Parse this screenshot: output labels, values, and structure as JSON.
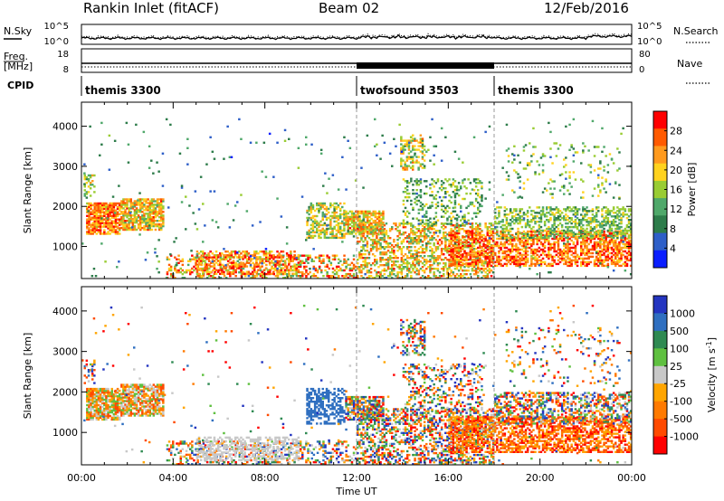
{
  "header": {
    "station": "Rankin Inlet (fitACF)",
    "beam": "Beam 02",
    "date": "12/Feb/2016"
  },
  "strip_plots": {
    "nsky_label": "N.Sky",
    "nsky_ticks": [
      "10^5",
      "10^0"
    ],
    "nsearch_label": "N.Search",
    "nsearch_ticks": [
      "10^5",
      "10^0"
    ],
    "freq_label": "Freq.",
    "freq_unit": "[MHz]",
    "freq_ticks": [
      "18",
      "8"
    ],
    "nave_label": "Nave",
    "nave_ticks": [
      "80",
      "0"
    ],
    "cpid_label": "CPID",
    "cpid_segments": [
      {
        "name": "themis 3300",
        "start_h": 0,
        "end_h": 12
      },
      {
        "name": "twofsound 3503",
        "start_h": 12,
        "end_h": 18
      },
      {
        "name": "themis 3300",
        "start_h": 18,
        "end_h": 24
      }
    ]
  },
  "colors": {
    "power": [
      "#0a1eff",
      "#2e5fc8",
      "#2d7c4a",
      "#4fa86a",
      "#99cc33",
      "#ffd21e",
      "#ff9a1e",
      "#ff5a00",
      "#ff0000"
    ],
    "velocity": [
      "#2435c0",
      "#2f6fc0",
      "#2f8a52",
      "#5fc040",
      "#c8c8c8",
      "#ffa500",
      "#ff7a00",
      "#ff4a00",
      "#ff0000"
    ]
  },
  "chart_data": [
    {
      "type": "heatmap",
      "name": "power",
      "ylabel": "Slant Range [km]",
      "y_ticks": [
        1000,
        2000,
        3000,
        4000
      ],
      "ylim": [
        200,
        4600
      ],
      "xlim": [
        0,
        24
      ],
      "colorbar_label": "Power [dB]",
      "colorbar_ticks": [
        "4",
        "8",
        "12",
        "16",
        "20",
        "24",
        "28"
      ],
      "colorbar_range": [
        0,
        32
      ]
    },
    {
      "type": "heatmap",
      "name": "velocity",
      "xlabel": "Time UT",
      "x_ticks": [
        "00:00",
        "04:00",
        "08:00",
        "12:00",
        "16:00",
        "20:00",
        "00:00"
      ],
      "ylabel": "Slant Range [km]",
      "y_ticks": [
        1000,
        2000,
        3000,
        4000
      ],
      "ylim": [
        200,
        4600
      ],
      "xlim": [
        0,
        24
      ],
      "colorbar_label": "Velocity [m s",
      "colorbar_exp": "-1",
      "colorbar_unit_close": "]",
      "colorbar_ticks": [
        "1000",
        "500",
        "100",
        "25",
        "-25",
        "-100",
        "-500",
        "-1000"
      ]
    }
  ]
}
